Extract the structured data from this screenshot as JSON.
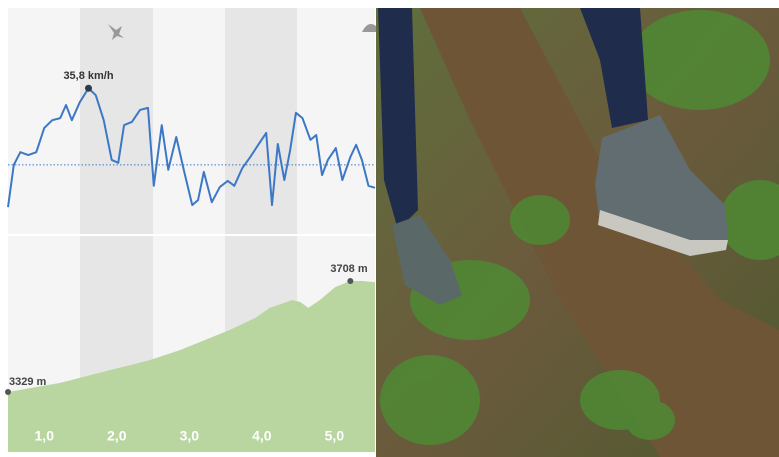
{
  "chart_data": [
    {
      "type": "line",
      "color": "#3d78c6",
      "max_label": "35,8 km/h",
      "average": 17.1,
      "xlim": [
        0.5,
        5.56
      ],
      "ylim": [
        0,
        40
      ],
      "x": [
        0.5,
        0.58,
        0.67,
        0.78,
        0.89,
        1.0,
        1.11,
        1.22,
        1.3,
        1.38,
        1.49,
        1.61,
        1.71,
        1.82,
        1.93,
        2.02,
        2.1,
        2.21,
        2.32,
        2.43,
        2.51,
        2.62,
        2.71,
        2.82,
        2.93,
        3.04,
        3.12,
        3.2,
        3.31,
        3.42,
        3.53,
        3.62,
        3.73,
        3.84,
        3.95,
        4.06,
        4.14,
        4.22,
        4.31,
        4.39,
        4.47,
        4.56,
        4.67,
        4.75,
        4.83,
        4.91,
        5.02,
        5.11,
        5.22,
        5.3,
        5.38,
        5.47,
        5.56
      ],
      "values": [
        6.8,
        17.1,
        20.2,
        19.5,
        20.2,
        26.1,
        28.0,
        28.5,
        31.7,
        28.0,
        32.4,
        35.8,
        34.1,
        28.0,
        18.3,
        17.6,
        26.8,
        27.6,
        30.5,
        31.0,
        12.0,
        26.8,
        15.9,
        23.9,
        15.4,
        7.3,
        8.5,
        15.4,
        8.0,
        11.7,
        13.2,
        12.0,
        16.3,
        19.0,
        22.0,
        24.9,
        7.3,
        22.2,
        13.4,
        20.7,
        29.8,
        28.5,
        23.2,
        24.4,
        14.6,
        18.3,
        21.2,
        13.4,
        19.0,
        22.0,
        18.3,
        12.0,
        11.5
      ]
    },
    {
      "type": "area",
      "color": "#b9d6a0",
      "start_label": "3329 m",
      "end_label": "3708 m",
      "xlim": [
        0.5,
        5.56
      ],
      "ylim": [
        3124,
        3865
      ],
      "x": [
        0.5,
        1.22,
        1.91,
        2.46,
        2.87,
        3.22,
        3.56,
        3.91,
        4.11,
        4.42,
        4.53,
        4.64,
        4.8,
        5.01,
        5.22,
        5.38,
        5.56
      ],
      "values": [
        3329,
        3360,
        3404,
        3438,
        3472,
        3507,
        3541,
        3582,
        3616,
        3643,
        3636,
        3616,
        3643,
        3687,
        3708,
        3708,
        3704
      ],
      "xticks": [
        {
          "value": 1,
          "label": "1,0"
        },
        {
          "value": 2,
          "label": "2,0"
        },
        {
          "value": 3,
          "label": "3,0"
        },
        {
          "value": 4,
          "label": "4,0"
        },
        {
          "value": 5,
          "label": "5,0"
        }
      ]
    }
  ]
}
